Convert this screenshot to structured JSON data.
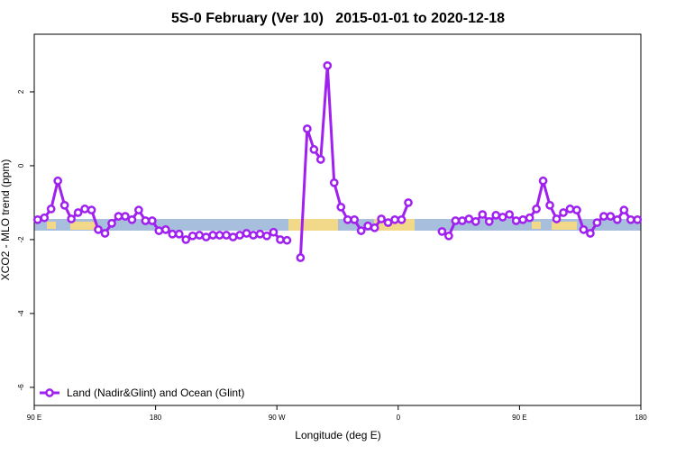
{
  "chart_data": {
    "type": "line",
    "title": "5S-0 February (Ver 10)   2015-01-01 to 2020-12-18",
    "x_label": "Longitude (deg E)",
    "y_label": "XCO2 - MLO trend (ppm)",
    "x": [
      92.5,
      97.5,
      102.5,
      107.5,
      112.5,
      117.5,
      122.5,
      127.5,
      132.5,
      137.5,
      142.5,
      147.5,
      152.5,
      157.5,
      162.5,
      167.5,
      172.5,
      177.5,
      182.5,
      187.5,
      192.5,
      197.5,
      202.5,
      207.5,
      212.5,
      217.5,
      222.5,
      227.5,
      232.5,
      237.5,
      242.5,
      247.5,
      252.5,
      257.5,
      262.5,
      267.5,
      272.5,
      277.5,
      282.5,
      287.5,
      292.5,
      297.5,
      302.5,
      307.5,
      312.5,
      317.5,
      322.5,
      327.5,
      332.5,
      337.5,
      342.5,
      347.5,
      352.5,
      357.5,
      362.5,
      367.5,
      372.5,
      377.5,
      382.5,
      387.5,
      392.5,
      397.5,
      402.5,
      407.5,
      412.5,
      417.5,
      422.5,
      427.5,
      432.5,
      437.5,
      442.5,
      447.5,
      452.5,
      457.5,
      462.5,
      467.5,
      472.5,
      477.5,
      482.5,
      487.5,
      492.5,
      497.5,
      502.5,
      507.5,
      512.5,
      517.5,
      522.5,
      527.5,
      532.5,
      537.5
    ],
    "series": [
      {
        "name": "Land (Nadir&Glint) and Ocean (Glint)",
        "color": "#a020f0",
        "values": [
          -1.46,
          -1.41,
          -1.17,
          -0.41,
          -1.07,
          -1.44,
          -1.27,
          -1.17,
          -1.2,
          -1.73,
          -1.83,
          -1.56,
          -1.37,
          -1.37,
          -1.46,
          -1.2,
          -1.49,
          -1.49,
          -1.76,
          -1.73,
          -1.85,
          -1.85,
          -2.0,
          -1.9,
          -1.88,
          -1.93,
          -1.88,
          -1.88,
          -1.88,
          -1.93,
          -1.88,
          -1.83,
          -1.88,
          -1.85,
          -1.9,
          -1.8,
          -2.0,
          -2.02,
          null,
          -2.49,
          1.0,
          0.44,
          0.17,
          2.71,
          -0.46,
          -1.12,
          -1.46,
          -1.46,
          -1.76,
          -1.63,
          -1.68,
          -1.44,
          -1.54,
          -1.46,
          -1.46,
          -1.0,
          null,
          null,
          null,
          null,
          -1.78,
          -1.9,
          -1.49,
          -1.49,
          -1.44,
          -1.51,
          -1.32,
          -1.51,
          -1.34,
          -1.39,
          -1.32,
          -1.49,
          -1.46,
          -1.41,
          -1.17,
          -0.41,
          -1.07,
          -1.44,
          -1.27,
          -1.17,
          -1.2,
          -1.73,
          -1.83,
          -1.54,
          -1.37,
          -1.37,
          -1.46,
          -1.2,
          -1.46,
          -1.46
        ]
      }
    ],
    "xlim": [
      90,
      540
    ],
    "xticks": [
      {
        "value": 90,
        "label": "90 E"
      },
      180,
      {
        "value": 270,
        "label": "90 W"
      },
      {
        "value": 360,
        "label": "0"
      },
      {
        "value": 450,
        "label": "90 E"
      },
      {
        "value": 540,
        "label": "180"
      }
    ],
    "ylim": [
      -6.49,
      3.56
    ],
    "yticks": [
      2,
      0,
      -2,
      -4,
      -6
    ],
    "legend": "bottom-left"
  }
}
